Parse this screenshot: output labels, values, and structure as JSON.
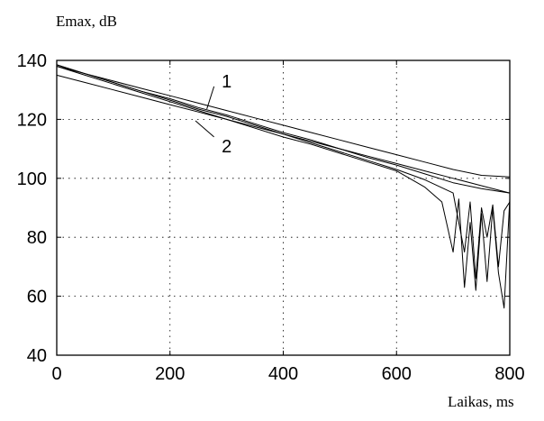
{
  "chart_data": {
    "type": "line",
    "ylabel": "Emax, dB",
    "xlabel": "Laikas, ms",
    "xlim": [
      0,
      800
    ],
    "ylim": [
      40,
      140
    ],
    "xticks": [
      0,
      200,
      400,
      600,
      800
    ],
    "yticks": [
      40,
      60,
      80,
      100,
      120,
      140
    ],
    "xtick_labels": [
      "0",
      "200",
      "400",
      "600",
      "800"
    ],
    "ytick_labels": [
      "40",
      "60",
      "80",
      "100",
      "120",
      "140"
    ],
    "grid": true,
    "annotations": [
      {
        "text": "1",
        "points_to": [
          265,
          123.5
        ],
        "label_at": [
          300,
          133
        ]
      },
      {
        "text": "2",
        "points_to": [
          245,
          119.5
        ],
        "label_at": [
          300,
          111
        ]
      }
    ],
    "series": [
      {
        "x": [
          0,
          50,
          100,
          150,
          200,
          250,
          300,
          350,
          400,
          450,
          500,
          550,
          600,
          650,
          700,
          750,
          800
        ],
        "values": [
          138.5,
          135.5,
          133,
          130.5,
          128,
          125.5,
          123,
          120.5,
          118,
          115.5,
          113,
          110.5,
          108,
          105.5,
          103,
          101,
          100.5
        ]
      },
      {
        "x": [
          0,
          50,
          100,
          150,
          200,
          250,
          300,
          350,
          400,
          450,
          500,
          550,
          600,
          650,
          700,
          750,
          800
        ],
        "values": [
          138.5,
          135.5,
          132.5,
          129.5,
          127,
          124,
          121.5,
          118.5,
          115.5,
          113,
          110,
          107,
          104.5,
          101.5,
          98.5,
          96.5,
          95
        ]
      },
      {
        "x": [
          0,
          50,
          100,
          150,
          200,
          250,
          300,
          350,
          400,
          450,
          500,
          550,
          600,
          650,
          700,
          720,
          730,
          740,
          750,
          760,
          770,
          780,
          790,
          800
        ],
        "values": [
          138,
          135.5,
          132.5,
          129.5,
          126.5,
          123.5,
          121,
          118,
          115,
          112,
          109,
          106,
          103,
          99.5,
          95,
          75,
          92,
          66,
          90,
          80,
          91,
          70,
          89,
          92
        ]
      },
      {
        "x": [
          0,
          50,
          100,
          150,
          200,
          250,
          300,
          350,
          400,
          450,
          500,
          550,
          600,
          650,
          680,
          700,
          710,
          720,
          730,
          740,
          750,
          760,
          770,
          780,
          790,
          800
        ],
        "values": [
          138,
          135,
          132,
          129,
          126,
          123,
          120,
          117,
          114,
          111.5,
          108.5,
          105.5,
          102.5,
          97,
          92,
          75,
          93,
          63,
          85,
          62,
          88,
          65,
          90,
          68,
          56,
          93
        ]
      },
      {
        "x": [
          0,
          50,
          100,
          150,
          200,
          250,
          300,
          350,
          400,
          450,
          500,
          550,
          600,
          650,
          700,
          750,
          800
        ],
        "values": [
          135,
          132.5,
          130,
          127.5,
          125,
          122.5,
          120,
          117.5,
          115,
          112.5,
          110,
          107.5,
          105,
          102.5,
          100,
          97.5,
          95
        ]
      }
    ]
  }
}
